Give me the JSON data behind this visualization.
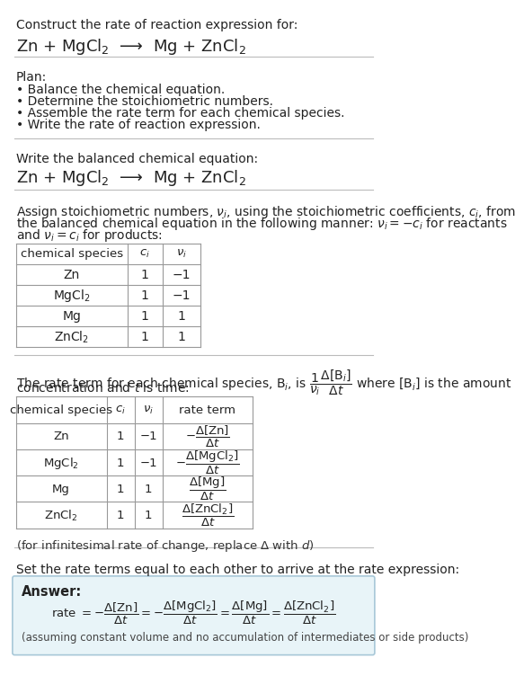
{
  "bg_color": "#ffffff",
  "text_color": "#222222",
  "title_line1": "Construct the rate of reaction expression for:",
  "reaction_equation": "Zn + MgCl$_2$  ⟶  Mg + ZnCl$_2$",
  "plan_title": "Plan:",
  "plan_items": [
    "• Balance the chemical equation.",
    "• Determine the stoichiometric numbers.",
    "• Assemble the rate term for each chemical species.",
    "• Write the rate of reaction expression."
  ],
  "balanced_eq_label": "Write the balanced chemical equation:",
  "balanced_eq": "Zn + MgCl$_2$  ⟶  Mg + ZnCl$_2$",
  "stoich_intro_lines": [
    "Assign stoichiometric numbers, $\\nu_i$, using the stoichiometric coefficients, $c_i$, from",
    "the balanced chemical equation in the following manner: $\\nu_i = -c_i$ for reactants",
    "and $\\nu_i = c_i$ for products:"
  ],
  "table1_headers": [
    "chemical species",
    "$c_i$",
    "$\\nu_i$"
  ],
  "table1_rows": [
    [
      "Zn",
      "1",
      "−1"
    ],
    [
      "MgCl$_2$",
      "1",
      "−1"
    ],
    [
      "Mg",
      "1",
      "1"
    ],
    [
      "ZnCl$_2$",
      "1",
      "1"
    ]
  ],
  "rate_term_intro_lines": [
    "The rate term for each chemical species, B$_i$, is $\\dfrac{1}{\\nu_i}\\dfrac{\\Delta[\\mathrm{B}_i]}{\\Delta t}$ where [B$_i$] is the amount",
    "concentration and $t$ is time:"
  ],
  "table2_headers": [
    "chemical species",
    "$c_i$",
    "$\\nu_i$",
    "rate term"
  ],
  "table2_rows": [
    [
      "Zn",
      "1",
      "−1",
      "$-\\dfrac{\\Delta[\\mathrm{Zn}]}{\\Delta t}$"
    ],
    [
      "MgCl$_2$",
      "1",
      "−1",
      "$-\\dfrac{\\Delta[\\mathrm{MgCl_2}]}{\\Delta t}$"
    ],
    [
      "Mg",
      "1",
      "1",
      "$\\dfrac{\\Delta[\\mathrm{Mg}]}{\\Delta t}$"
    ],
    [
      "ZnCl$_2$",
      "1",
      "1",
      "$\\dfrac{\\Delta[\\mathrm{ZnCl_2}]}{\\Delta t}$"
    ]
  ],
  "infinitesimal_note": "(for infinitesimal rate of change, replace Δ with $d$)",
  "set_rate_text": "Set the rate terms equal to each other to arrive at the rate expression:",
  "answer_label": "Answer:",
  "answer_box_facecolor": "#e8f4f8",
  "answer_box_edgecolor": "#a8c8d8",
  "rate_expression": "rate $= -\\dfrac{\\Delta[\\mathrm{Zn}]}{\\Delta t} = -\\dfrac{\\Delta[\\mathrm{MgCl_2}]}{\\Delta t} = \\dfrac{\\Delta[\\mathrm{Mg}]}{\\Delta t} = \\dfrac{\\Delta[\\mathrm{ZnCl_2}]}{\\Delta t}$",
  "assuming_note": "(assuming constant volume and no accumulation of intermediates or side products)"
}
